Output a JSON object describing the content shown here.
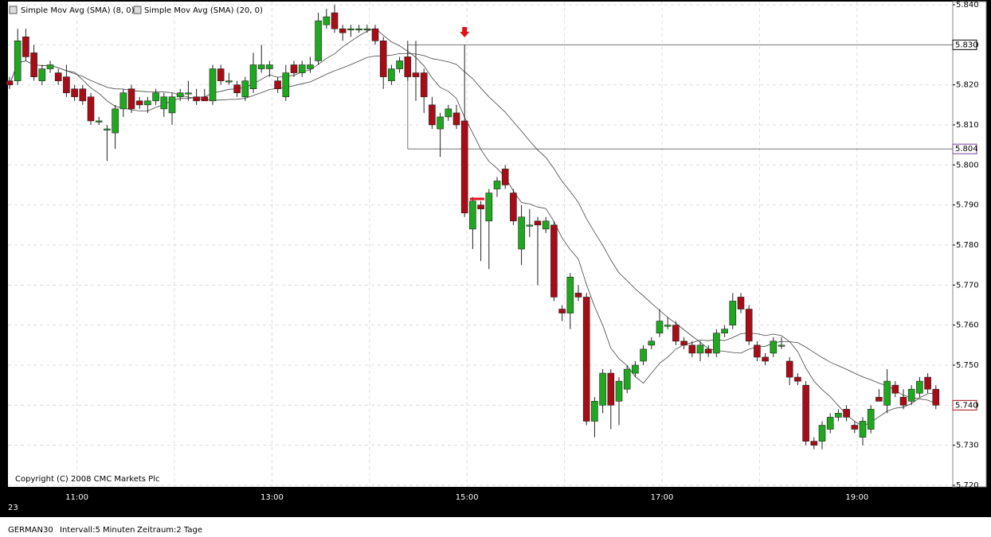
{
  "chart_data": {
    "type": "candlestick",
    "legend": [
      "Simple Mov Avg (SMA) (8, 0)",
      "Simple Mov Avg (SMA) (20, 0)"
    ],
    "sma_periods": [
      8,
      20
    ],
    "copyright": "Copyright (C) 2008 CMC Markets Plc",
    "date_label": "23",
    "footer": [
      "GERMAN30",
      "Intervall:5 Minuten",
      "Zeitraum:2 Tage"
    ],
    "up_color": "#1fa81f",
    "down_color": "#a80c16",
    "x": [
      "10:20",
      "10:25",
      "10:30",
      "10:35",
      "10:40",
      "10:45",
      "10:50",
      "10:55",
      "11:00",
      "11:05",
      "11:10",
      "11:15",
      "11:20",
      "11:25",
      "11:30",
      "11:35",
      "11:40",
      "11:45",
      "11:50",
      "11:55",
      "12:00",
      "12:05",
      "12:10",
      "12:15",
      "12:20",
      "12:25",
      "12:30",
      "12:35",
      "12:40",
      "12:45",
      "12:50",
      "12:55",
      "13:00",
      "13:05",
      "13:10",
      "13:15",
      "13:20",
      "13:25",
      "13:30",
      "13:35",
      "13:40",
      "13:45",
      "13:50",
      "13:55",
      "14:00",
      "14:05",
      "14:10",
      "14:15",
      "14:20",
      "14:25",
      "14:30",
      "14:35",
      "14:40",
      "14:45",
      "14:50",
      "14:55",
      "15:00",
      "15:05",
      "15:10",
      "15:15",
      "15:20",
      "15:25",
      "15:30",
      "15:35",
      "15:40",
      "15:45",
      "15:50",
      "15:55",
      "16:00",
      "16:05",
      "16:10",
      "16:15",
      "16:20",
      "16:25",
      "16:30",
      "16:35",
      "16:40",
      "16:45",
      "16:50",
      "16:55",
      "17:00",
      "17:05",
      "17:10",
      "17:15",
      "17:20",
      "17:25",
      "17:30",
      "17:35",
      "17:40",
      "17:45",
      "17:50",
      "17:55",
      "18:00",
      "18:05",
      "18:10",
      "18:15",
      "18:20",
      "18:25",
      "18:30",
      "18:35",
      "18:40",
      "18:45",
      "18:50",
      "18:55",
      "19:00",
      "19:05",
      "19:10",
      "19:15",
      "19:20",
      "19:25",
      "19:30",
      "19:35",
      "19:40",
      "19:45",
      "19:50"
    ],
    "open": [
      5.821,
      5.821,
      5.832,
      5.828,
      5.821,
      5.824,
      5.823,
      5.822,
      5.819,
      5.819,
      5.817,
      5.811,
      5.809,
      5.808,
      5.814,
      5.819,
      5.816,
      5.815,
      5.816,
      5.814,
      5.813,
      5.817,
      5.818,
      5.817,
      5.817,
      5.816,
      5.824,
      5.821,
      5.82,
      5.817,
      5.819,
      5.824,
      5.824,
      5.821,
      5.817,
      5.825,
      5.823,
      5.824,
      5.826,
      5.835,
      5.838,
      5.834,
      5.834,
      5.834,
      5.834,
      5.834,
      5.831,
      5.821,
      5.824,
      5.827,
      5.823,
      5.823,
      5.815,
      5.809,
      5.812,
      5.813,
      5.811,
      5.784,
      5.79,
      5.786,
      5.794,
      5.799,
      5.793,
      5.779,
      5.785,
      5.786,
      5.784,
      5.785,
      5.764,
      5.763,
      5.768,
      5.767,
      5.736,
      5.74,
      5.748,
      5.741,
      5.744,
      5.748,
      5.751,
      5.755,
      5.758,
      5.76,
      5.76,
      5.756,
      5.755,
      5.753,
      5.754,
      5.753,
      5.758,
      5.76,
      5.767,
      5.764,
      5.755,
      5.752,
      5.753,
      5.755,
      5.751,
      5.747,
      5.745,
      5.731,
      5.731,
      5.734,
      5.737,
      5.739,
      5.735,
      5.732,
      5.734,
      5.742,
      5.74,
      5.745,
      5.742,
      5.741,
      5.743,
      5.747,
      5.744
    ],
    "high": [
      5.822,
      5.834,
      5.834,
      5.83,
      5.825,
      5.826,
      5.824,
      5.825,
      5.82,
      5.82,
      5.818,
      5.812,
      5.81,
      5.815,
      5.819,
      5.82,
      5.817,
      5.817,
      5.819,
      5.818,
      5.818,
      5.819,
      5.821,
      5.819,
      5.819,
      5.825,
      5.825,
      5.823,
      5.821,
      5.822,
      5.828,
      5.83,
      5.826,
      5.822,
      5.825,
      5.826,
      5.826,
      5.827,
      5.838,
      5.839,
      5.84,
      5.835,
      5.835,
      5.835,
      5.835,
      5.835,
      5.832,
      5.825,
      5.827,
      5.831,
      5.831,
      5.824,
      5.817,
      5.813,
      5.815,
      5.815,
      5.83,
      5.792,
      5.791,
      5.794,
      5.797,
      5.8,
      5.794,
      5.79,
      5.789,
      5.787,
      5.787,
      5.786,
      5.765,
      5.773,
      5.77,
      5.768,
      5.742,
      5.749,
      5.749,
      5.747,
      5.75,
      5.751,
      5.755,
      5.757,
      5.764,
      5.762,
      5.761,
      5.757,
      5.756,
      5.756,
      5.755,
      5.759,
      5.76,
      5.768,
      5.768,
      5.765,
      5.756,
      5.753,
      5.757,
      5.757,
      5.752,
      5.748,
      5.746,
      5.732,
      5.736,
      5.738,
      5.739,
      5.74,
      5.736,
      5.737,
      5.74,
      5.744,
      5.749,
      5.746,
      5.744,
      5.745,
      5.747,
      5.748,
      5.745
    ],
    "low": [
      5.819,
      5.82,
      5.826,
      5.821,
      5.82,
      5.823,
      5.82,
      5.817,
      5.816,
      5.815,
      5.81,
      5.81,
      5.801,
      5.804,
      5.812,
      5.813,
      5.814,
      5.813,
      5.815,
      5.812,
      5.81,
      5.816,
      5.816,
      5.815,
      5.816,
      5.815,
      5.82,
      5.82,
      5.817,
      5.816,
      5.818,
      5.823,
      5.822,
      5.818,
      5.816,
      5.822,
      5.822,
      5.823,
      5.825,
      5.834,
      5.833,
      5.831,
      5.832,
      5.833,
      5.833,
      5.83,
      5.819,
      5.82,
      5.823,
      5.821,
      5.816,
      5.813,
      5.809,
      5.802,
      5.811,
      5.809,
      5.787,
      5.779,
      5.776,
      5.774,
      5.792,
      5.794,
      5.785,
      5.775,
      5.782,
      5.77,
      5.783,
      5.766,
      5.761,
      5.759,
      5.766,
      5.735,
      5.732,
      5.738,
      5.734,
      5.735,
      5.743,
      5.747,
      5.75,
      5.754,
      5.757,
      5.759,
      5.755,
      5.754,
      5.752,
      5.751,
      5.752,
      5.752,
      5.757,
      5.759,
      5.763,
      5.755,
      5.751,
      5.75,
      5.752,
      5.754,
      5.745,
      5.745,
      5.73,
      5.729,
      5.729,
      5.733,
      5.736,
      5.736,
      5.733,
      5.73,
      5.733,
      5.741,
      5.738,
      5.742,
      5.739,
      5.74,
      5.742,
      5.743,
      5.739
    ],
    "close": [
      5.82,
      5.831,
      5.827,
      5.822,
      5.824,
      5.825,
      5.821,
      5.818,
      5.817,
      5.816,
      5.811,
      5.811,
      5.809,
      5.814,
      5.818,
      5.814,
      5.815,
      5.816,
      5.818,
      5.817,
      5.817,
      5.818,
      5.818,
      5.816,
      5.816,
      5.824,
      5.821,
      5.821,
      5.818,
      5.821,
      5.825,
      5.825,
      5.825,
      5.819,
      5.823,
      5.823,
      5.825,
      5.825,
      5.836,
      5.837,
      5.834,
      5.833,
      5.834,
      5.834,
      5.834,
      5.831,
      5.822,
      5.824,
      5.826,
      5.822,
      5.822,
      5.817,
      5.81,
      5.812,
      5.814,
      5.81,
      5.788,
      5.791,
      5.789,
      5.793,
      5.796,
      5.795,
      5.786,
      5.787,
      5.785,
      5.785,
      5.786,
      5.767,
      5.763,
      5.772,
      5.767,
      5.736,
      5.741,
      5.748,
      5.74,
      5.746,
      5.749,
      5.75,
      5.754,
      5.756,
      5.761,
      5.76,
      5.756,
      5.755,
      5.753,
      5.755,
      5.753,
      5.758,
      5.759,
      5.766,
      5.764,
      5.756,
      5.752,
      5.751,
      5.756,
      5.755,
      5.747,
      5.746,
      5.731,
      5.73,
      5.735,
      5.737,
      5.738,
      5.737,
      5.734,
      5.736,
      5.739,
      5.741,
      5.746,
      5.743,
      5.74,
      5.744,
      5.746,
      5.744,
      5.74
    ],
    "ylim": [
      5.72,
      5.84
    ],
    "yticks": [
      {
        "value": 5.72,
        "label": "5.720"
      },
      {
        "value": 5.73,
        "label": "5.730"
      },
      {
        "value": 5.74,
        "label": "5.740"
      },
      {
        "value": 5.75,
        "label": "5.750"
      },
      {
        "value": 5.76,
        "label": "5.760"
      },
      {
        "value": 5.77,
        "label": "5.770"
      },
      {
        "value": 5.78,
        "label": "5.780"
      },
      {
        "value": 5.79,
        "label": "5.790"
      },
      {
        "value": 5.8,
        "label": "5.800"
      },
      {
        "value": 5.81,
        "label": "5.810"
      },
      {
        "value": 5.82,
        "label": "5.820"
      },
      {
        "value": 5.83,
        "label": "5.830"
      },
      {
        "value": 5.84,
        "label": "5.840"
      }
    ],
    "xticks": [
      "11:00",
      "13:00",
      "15:00",
      "17:00",
      "19:00"
    ],
    "levels": [
      {
        "value": 5.83,
        "label": "5.830",
        "color": "#000000",
        "from": "14:25"
      },
      {
        "value": 5.804,
        "label": "5.804",
        "color": "#7a3fa0",
        "from": "14:25"
      }
    ],
    "signal_at": "15:00",
    "last_price_label": "5.740",
    "grid": true
  }
}
